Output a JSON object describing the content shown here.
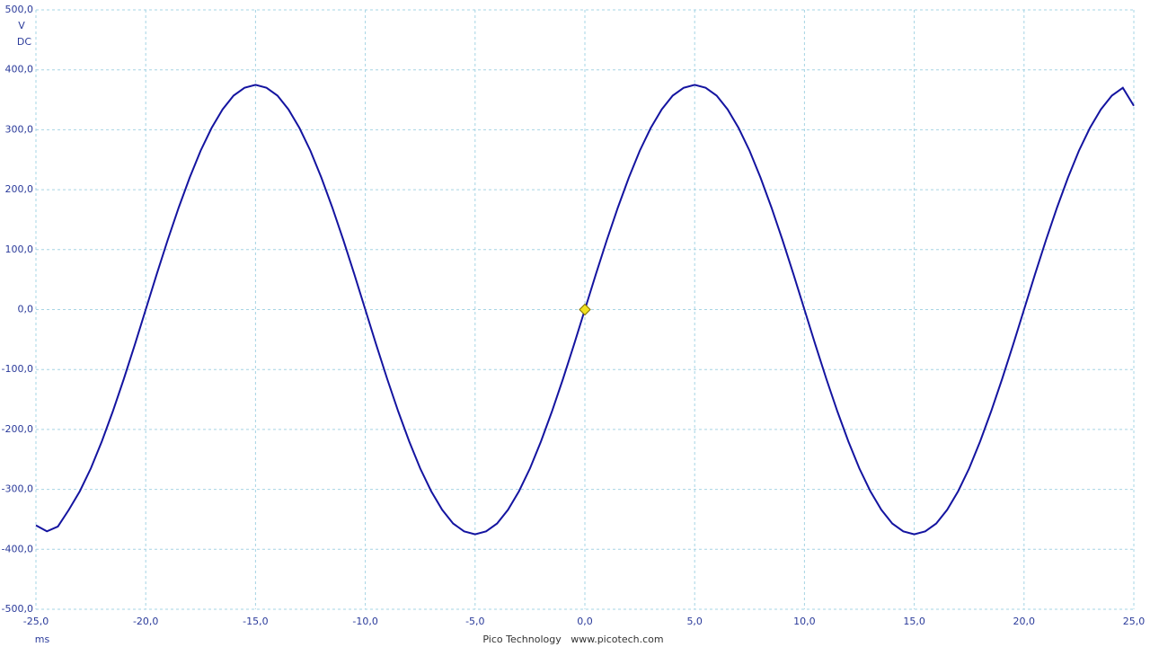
{
  "chart_data": {
    "type": "line",
    "y_unit": "V",
    "coupling": "DC",
    "x_unit": "ms",
    "footer": "Pico Technology   www.picotech.com",
    "color": "#1414a0",
    "grid": true,
    "xlim": [
      -25,
      25
    ],
    "ylim": [
      -500,
      500
    ],
    "xticks": [
      {
        "value": -25,
        "label": "-25,0"
      },
      {
        "value": -20,
        "label": "-20,0"
      },
      {
        "value": -15,
        "label": "-15,0"
      },
      {
        "value": -10,
        "label": "-10,0"
      },
      {
        "value": -5,
        "label": "-5,0"
      },
      {
        "value": 0,
        "label": "0,0"
      },
      {
        "value": 5,
        "label": "5,0"
      },
      {
        "value": 10,
        "label": "10,0"
      },
      {
        "value": 15,
        "label": "15,0"
      },
      {
        "value": 20,
        "label": "20,0"
      },
      {
        "value": 25,
        "label": "25,0"
      }
    ],
    "yticks": [
      {
        "value": 500,
        "label": "500,0"
      },
      {
        "value": 400,
        "label": "400,0"
      },
      {
        "value": 300,
        "label": "300,0"
      },
      {
        "value": 200,
        "label": "200,0"
      },
      {
        "value": 100,
        "label": "100,0"
      },
      {
        "value": 0,
        "label": "0,0"
      },
      {
        "value": -100,
        "label": "-100,0"
      },
      {
        "value": -200,
        "label": "-200,0"
      },
      {
        "value": -300,
        "label": "-300,0"
      },
      {
        "value": -400,
        "label": "-400,0"
      },
      {
        "value": -500,
        "label": "-500,0"
      }
    ],
    "trigger": {
      "x": 0,
      "y": 0,
      "color": "#f0e020"
    },
    "x": [
      -25,
      -24.5,
      -24,
      -23.5,
      -23,
      -22.5,
      -22,
      -21.5,
      -21,
      -20.5,
      -20,
      -19.5,
      -19,
      -18.5,
      -18,
      -17.5,
      -17,
      -16.5,
      -16,
      -15.5,
      -15,
      -14.5,
      -14,
      -13.5,
      -13,
      -12.5,
      -12,
      -11.5,
      -11,
      -10.5,
      -10,
      -9.5,
      -9,
      -8.5,
      -8,
      -7.5,
      -7,
      -6.5,
      -6,
      -5.5,
      -5,
      -4.5,
      -4,
      -3.5,
      -3,
      -2.5,
      -2,
      -1.5,
      -1,
      -0.5,
      0,
      0.5,
      1,
      1.5,
      2,
      2.5,
      3,
      3.5,
      4,
      4.5,
      5,
      5.5,
      6,
      6.5,
      7,
      7.5,
      8,
      8.5,
      9,
      9.5,
      10,
      10.5,
      11,
      11.5,
      12,
      12.5,
      13,
      13.5,
      14,
      14.5,
      15,
      15.5,
      16,
      16.5,
      17,
      17.5,
      18,
      18.5,
      19,
      19.5,
      20,
      20.5,
      21,
      21.5,
      22,
      22.5,
      23,
      23.5,
      24,
      24.5,
      25
    ],
    "values": [
      -360,
      -370,
      -362,
      -334,
      -303,
      -265,
      -220,
      -170,
      -116,
      -59,
      0,
      59,
      116,
      170,
      220,
      265,
      303,
      334,
      357,
      370,
      375,
      370,
      357,
      334,
      303,
      265,
      220,
      170,
      116,
      59,
      0,
      -59,
      -116,
      -170,
      -220,
      -265,
      -303,
      -334,
      -357,
      -370,
      -375,
      -370,
      -357,
      -334,
      -303,
      -265,
      -220,
      -170,
      -116,
      -59,
      0,
      59,
      116,
      170,
      220,
      265,
      303,
      334,
      357,
      370,
      375,
      370,
      357,
      334,
      303,
      265,
      220,
      170,
      116,
      59,
      0,
      -59,
      -116,
      -170,
      -220,
      -265,
      -303,
      -334,
      -357,
      -370,
      -375,
      -370,
      -357,
      -334,
      -303,
      -265,
      -220,
      -170,
      -116,
      -59,
      0,
      59,
      116,
      170,
      220,
      265,
      303,
      334,
      357,
      370,
      340
    ]
  }
}
